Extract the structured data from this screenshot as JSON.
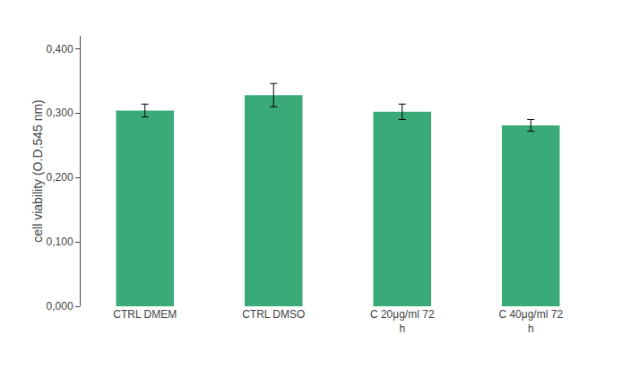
{
  "chart_data": {
    "type": "bar",
    "categories": [
      "CTRL DMEM",
      "CTRL DMSO",
      "C 20μg/ml 72\nh",
      "C 40μg/ml 72\nh"
    ],
    "values": [
      0.304,
      0.328,
      0.302,
      0.281
    ],
    "errors": [
      0.01,
      0.018,
      0.012,
      0.009
    ],
    "color": "#3aaa78",
    "ylabel": "cell viability (O.D.545 nm)",
    "ylim": [
      0.0,
      0.42
    ],
    "yticks": [
      {
        "value": 0.0,
        "label": "0,000"
      },
      {
        "value": 0.1,
        "label": "0,100"
      },
      {
        "value": 0.2,
        "label": "0,200"
      },
      {
        "value": 0.3,
        "label": "0,300"
      },
      {
        "value": 0.4,
        "label": "0,400"
      }
    ],
    "grid": false
  }
}
